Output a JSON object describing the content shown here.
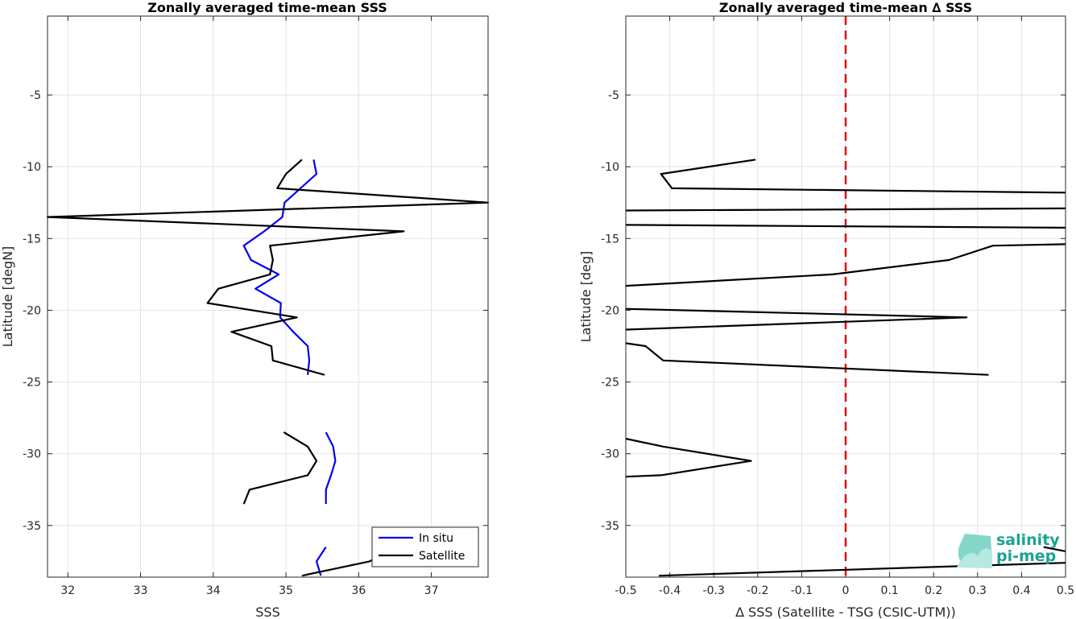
{
  "chart_data": [
    {
      "type": "line",
      "title": "Zonally averaged time-mean SSS",
      "xlabel": "SSS",
      "ylabel": "Latitude [degN]",
      "xlim": [
        31.72,
        37.78
      ],
      "ylim": [
        -38.6,
        0.5
      ],
      "xticks": [
        32,
        33,
        34,
        35,
        36,
        37
      ],
      "yticks": [
        -35,
        -30,
        -25,
        -20,
        -15,
        -10,
        -5
      ],
      "grid": true,
      "legend": {
        "placement": "bottom-right",
        "entries": [
          "In situ",
          "Satellite"
        ]
      },
      "series": [
        {
          "name": "In situ",
          "color": "#0000ee",
          "segments": [
            [
              [
                35.38,
                -9.5
              ],
              [
                35.42,
                -10.5
              ],
              [
                35.2,
                -11.5
              ],
              [
                34.98,
                -12.5
              ],
              [
                34.95,
                -13.5
              ],
              [
                34.7,
                -14.5
              ],
              [
                34.42,
                -15.5
              ],
              [
                34.52,
                -16.5
              ],
              [
                34.9,
                -17.5
              ],
              [
                34.58,
                -18.5
              ],
              [
                34.93,
                -19.5
              ],
              [
                34.92,
                -20.5
              ],
              [
                35.1,
                -21.5
              ],
              [
                35.3,
                -22.5
              ],
              [
                35.32,
                -23.5
              ],
              [
                35.3,
                -24.5
              ]
            ],
            [
              [
                35.55,
                -28.5
              ],
              [
                35.65,
                -29.5
              ],
              [
                35.68,
                -30.5
              ],
              [
                35.62,
                -31.5
              ],
              [
                35.55,
                -32.5
              ],
              [
                35.55,
                -33.5
              ]
            ],
            [
              [
                35.55,
                -36.5
              ],
              [
                35.42,
                -37.5
              ],
              [
                35.48,
                -38.5
              ]
            ]
          ]
        },
        {
          "name": "Satellite",
          "color": "#000000",
          "segments": [
            [
              [
                35.22,
                -9.5
              ],
              [
                35.0,
                -10.5
              ],
              [
                34.88,
                -11.5
              ],
              [
                37.78,
                -12.5
              ],
              [
                31.72,
                -13.5
              ],
              [
                36.62,
                -14.5
              ],
              [
                34.78,
                -15.5
              ],
              [
                34.82,
                -16.5
              ],
              [
                34.78,
                -17.5
              ],
              [
                34.07,
                -18.5
              ],
              [
                33.92,
                -19.5
              ],
              [
                35.15,
                -20.5
              ],
              [
                34.25,
                -21.5
              ],
              [
                34.8,
                -22.5
              ],
              [
                34.82,
                -23.5
              ],
              [
                35.53,
                -24.5
              ]
            ],
            [
              [
                34.97,
                -28.5
              ],
              [
                35.3,
                -29.5
              ],
              [
                35.42,
                -30.5
              ],
              [
                35.3,
                -31.5
              ],
              [
                34.5,
                -32.5
              ],
              [
                34.42,
                -33.5
              ]
            ],
            [
              [
                36.4,
                -36.8
              ],
              [
                36.15,
                -37.5
              ],
              [
                35.22,
                -38.5
              ]
            ]
          ]
        }
      ]
    },
    {
      "type": "line",
      "title": "Zonally averaged time-mean ∆ SSS",
      "xlabel": "∆ SSS (Satellite - TSG (CSIC-UTM))",
      "ylabel": "Latitude [deg]",
      "xlim": [
        -0.5,
        0.5
      ],
      "ylim": [
        -38.6,
        0.5
      ],
      "xticks": [
        -0.5,
        -0.4,
        -0.3,
        -0.2,
        -0.1,
        0,
        0.1,
        0.2,
        0.3,
        0.4,
        0.5
      ],
      "yticks": [
        -35,
        -30,
        -25,
        -20,
        -15,
        -10,
        -5
      ],
      "grid": true,
      "zero_line": {
        "x": 0,
        "color": "#dd1111",
        "style": "dashed"
      },
      "series": [
        {
          "color": "#000000",
          "segments": [
            [
              [
                -0.205,
                -9.5
              ],
              [
                -0.42,
                -10.5
              ],
              [
                -0.395,
                -11.5
              ],
              [
                0.5,
                -11.8
              ]
            ],
            [
              [
                0.5,
                -12.9
              ],
              [
                -0.5,
                -13.05
              ]
            ],
            [
              [
                -0.5,
                -14.05
              ],
              [
                0.5,
                -14.25
              ]
            ],
            [
              [
                0.5,
                -15.4
              ],
              [
                0.335,
                -15.5
              ],
              [
                0.235,
                -16.5
              ],
              [
                -0.03,
                -17.5
              ],
              [
                -0.5,
                -18.3
              ]
            ],
            [
              [
                -0.5,
                -19.9
              ],
              [
                0.275,
                -20.5
              ],
              [
                -0.5,
                -21.35
              ]
            ],
            [
              [
                -0.5,
                -22.3
              ],
              [
                -0.455,
                -22.5
              ],
              [
                -0.415,
                -23.5
              ],
              [
                0.325,
                -24.5
              ]
            ],
            [
              [
                -0.5,
                -28.95
              ],
              [
                -0.415,
                -29.5
              ],
              [
                -0.215,
                -30.5
              ],
              [
                -0.42,
                -31.5
              ],
              [
                -0.5,
                -31.6
              ]
            ],
            [
              [
                0.45,
                -36.5
              ],
              [
                0.5,
                -36.8
              ]
            ],
            [
              [
                0.5,
                -37.6
              ],
              [
                -0.425,
                -38.5
              ]
            ]
          ]
        }
      ]
    }
  ],
  "logo": {
    "line1": "salinity",
    "line2": "pi-mep"
  }
}
